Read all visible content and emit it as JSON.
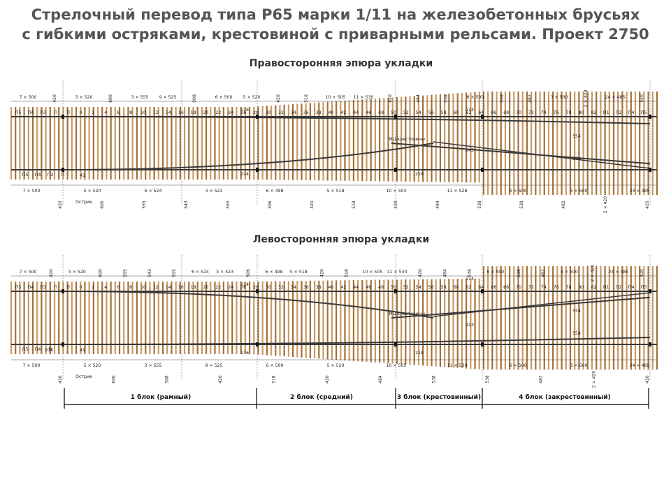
{
  "title_line1": "Стрелочный перевод типа Р65 марки 1/11 на железобетонных брусьях",
  "title_line2": "с гибкими остряками, крестовиной с приварными рельсами. Проект 2750",
  "right_section_title": "Правосторонняя эпюра укладки",
  "left_section_title": "Левосторонняя эпюра укладки",
  "blocks": [
    {
      "label": "1 блок (рамный)"
    },
    {
      "label": "2 блок (средний)"
    },
    {
      "label": "3 блок (крестовинный)"
    },
    {
      "label": "4 блок (закрестовинный)"
    }
  ],
  "labels": {
    "frog": "МЦ крестовины",
    "point": "Острие",
    "n554": "554",
    "n243": "243",
    "n41": "41",
    "n176": "176",
    "n224": "224",
    "n218": "218",
    "n174": "174",
    "n206": "206"
  },
  "right_diagram": {
    "top_dims": [
      "7 × 500",
      "420",
      "5 × 520",
      "600",
      "3 × 555",
      "9 × 525",
      "508",
      "6 × 500",
      "5 × 520",
      "420",
      "518",
      "10 × 505",
      "11 × 530",
      "420",
      "484",
      "538",
      "6 × 500",
      "538",
      "482",
      "3 × 500",
      "2 × 420",
      "24 × 485",
      "420"
    ],
    "bottom_dims": [
      "7 × 500",
      "5 × 520",
      "6 × 524",
      "3 × 523",
      "6 × 498",
      "5 × 518",
      "10 × 503",
      "11 × 528",
      "6 × 500",
      "3 × 500",
      "24 × 485"
    ],
    "bottom_vert": [
      "420",
      "600",
      "555",
      "543",
      "555",
      "506",
      "420",
      "518",
      "420",
      "484",
      "538",
      "538",
      "482",
      "2 × 420",
      "420"
    ],
    "numbers_left": [
      "П5",
      "П4",
      "П3",
      "П",
      "П",
      "0",
      "2",
      "4",
      "6",
      "8",
      "10",
      "12",
      "14",
      "16",
      "18",
      "20",
      "22",
      "24",
      "26",
      "28",
      "30",
      "32",
      "34",
      "36",
      "38",
      "40",
      "42",
      "44",
      "46",
      "48",
      "50",
      "52",
      "54",
      "56",
      "58",
      "60",
      "62",
      "64",
      "66",
      "68",
      "70",
      "72",
      "74",
      "76",
      "78",
      "80",
      "82",
      "П1",
      "П2",
      "П4",
      "П5"
    ],
    "numbers_lower_left": [
      "П5",
      "П4",
      "П3",
      "П"
    ]
  },
  "left_diagram": {
    "top_dims": [
      "7 × 500",
      "420",
      "5 × 520",
      "600",
      "555",
      "543",
      "555",
      "6 × 524",
      "3 × 523",
      "506",
      "6 × 498",
      "5 × 518",
      "420",
      "518",
      "10 × 505",
      "11 × 530",
      "420",
      "484",
      "538",
      "6 × 500",
      "538",
      "482",
      "3 × 500",
      "2 × 420",
      "24 × 485",
      "420"
    ],
    "bottom_dims": [
      "7 × 500",
      "5 × 520",
      "3 × 555",
      "9 × 525",
      "6 × 500",
      "5 × 520",
      "10 × 505",
      "11 × 530",
      "6 × 500",
      "3 × 500",
      "24 × 485"
    ],
    "bottom_vert": [
      "420",
      "600",
      "508",
      "420",
      "518",
      "420",
      "484",
      "538",
      "538",
      "482",
      "2 × 420",
      "420"
    ],
    "numbers_left": [
      "П5",
      "П4",
      "П3",
      "П",
      "П",
      "0",
      "2",
      "4",
      "6",
      "8",
      "10",
      "12",
      "14",
      "16",
      "18",
      "20",
      "22",
      "24",
      "26",
      "28",
      "30",
      "32",
      "34",
      "36",
      "38",
      "40",
      "42",
      "44",
      "46",
      "48",
      "50",
      "52",
      "54",
      "56",
      "58",
      "60",
      "62",
      "64",
      "66",
      "68",
      "70",
      "72",
      "74",
      "76",
      "78",
      "80",
      "82",
      "П1",
      "П2",
      "П4",
      "П5"
    ],
    "numbers_lower_left": [
      "П5",
      "П4",
      "П"
    ]
  },
  "colors": {
    "sleeper": "#a0703a",
    "sleeper_light": "#c99a62",
    "rail": "#3a3a3a",
    "dim_line": "#555555",
    "title": "#555555"
  }
}
